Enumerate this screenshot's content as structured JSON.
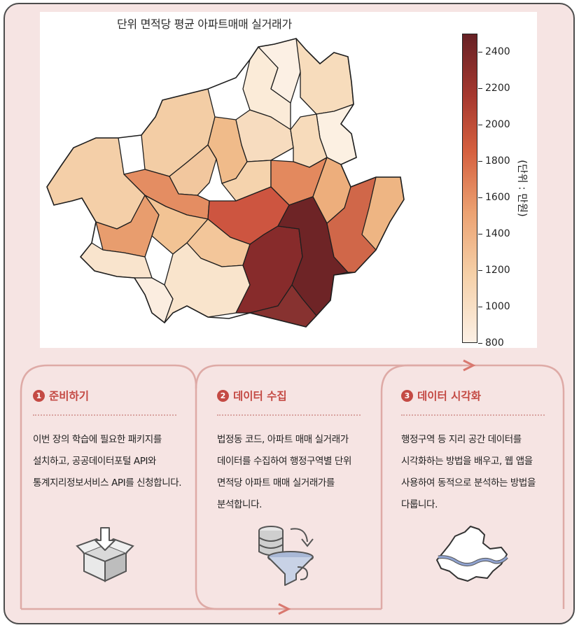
{
  "figure": {
    "title": "단위 면적당 평균 아파트매매 실거래가",
    "colorbar": {
      "unit_label": "(단위 : 만원)",
      "min": 800,
      "max": 2500,
      "ticks": [
        "800",
        "1000",
        "1200",
        "1400",
        "1600",
        "1800",
        "2000",
        "2200",
        "2400"
      ],
      "color_low": "#fcf0e5",
      "color_high": "#672125"
    }
  },
  "steps": [
    {
      "number": "1",
      "title": "준비하기",
      "text": "이번 장의 학습에 필요한 패키지를 설치하고, 공공데이터포털 API와 통계지리정보서비스 API를 신청합니다.",
      "icon": "open-box-download-icon"
    },
    {
      "number": "2",
      "title": "데이터 수집",
      "text": "법정동 코드, 아파트 매매 실거래가 데이터를 수집하여 행정구역별 단위 면적당 아파트 매매 실거래가를 분석합니다.",
      "icon": "database-funnel-icon"
    },
    {
      "number": "3",
      "title": "데이터 시각화",
      "text": "행정구역 등 지리 공간 데이터를 시각화하는 방법을 배우고, 웹 앱을 사용하여 동적으로 분석하는 방법을 다룹니다.",
      "icon": "seoul-map-icon"
    }
  ],
  "colors": {
    "accent": "#c44a44",
    "background": "#f6e4e3",
    "card_border": "#deaaa6"
  }
}
